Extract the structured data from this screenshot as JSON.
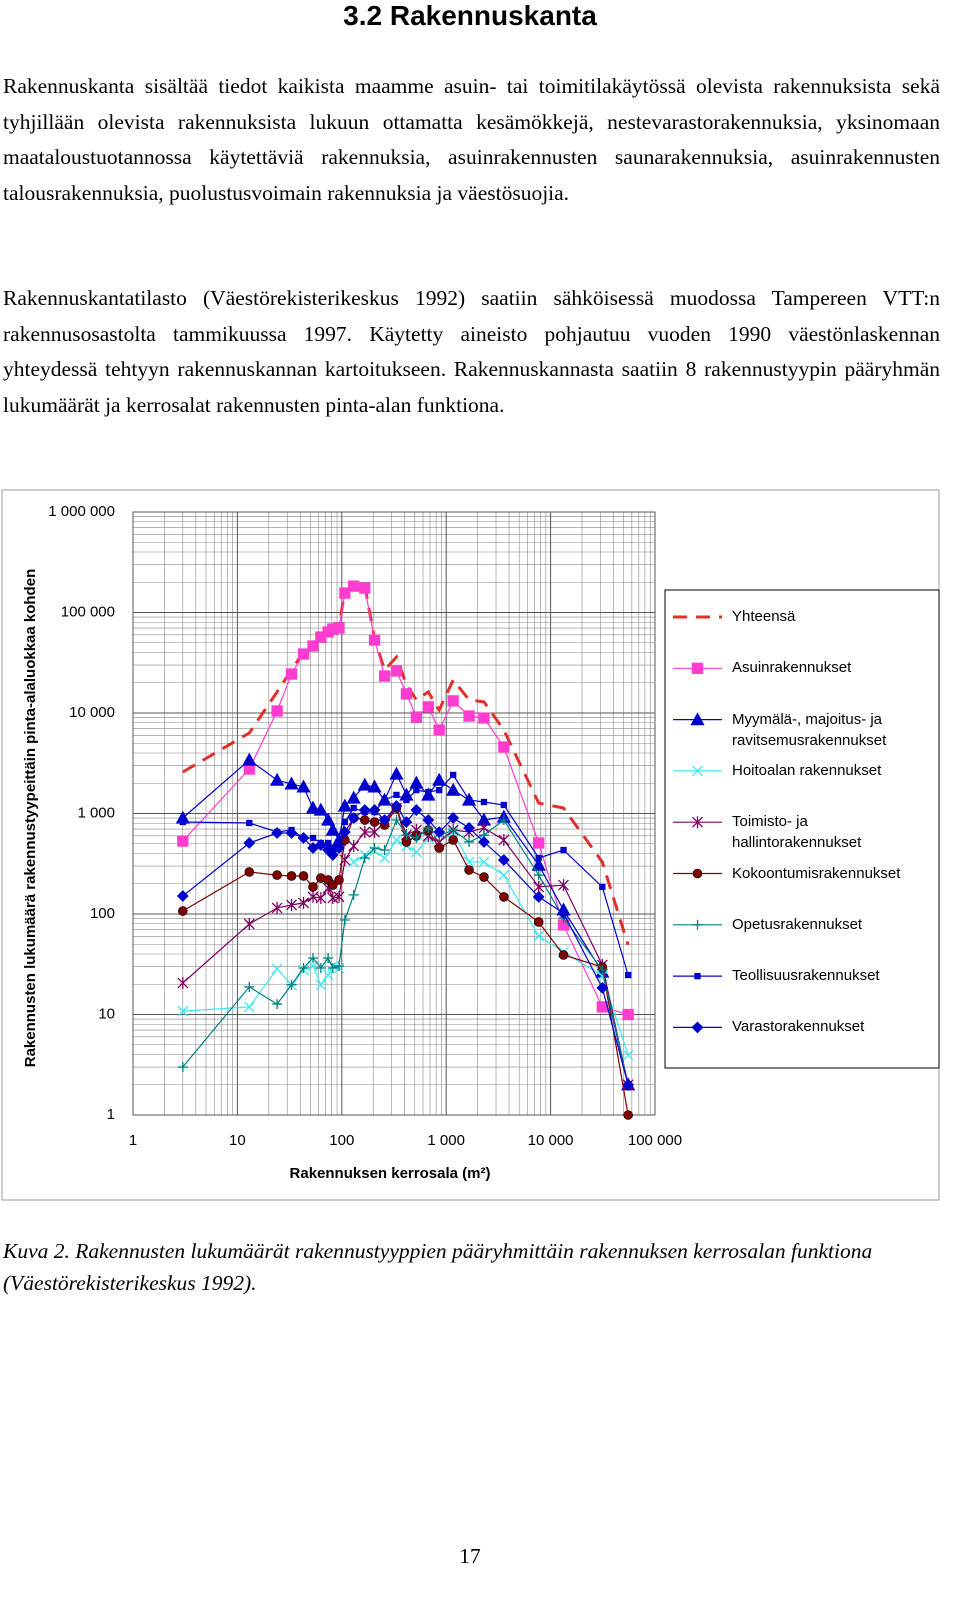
{
  "header": {
    "title": "3.2 Rakennuskanta"
  },
  "paragraphs": [
    "Rakennuskanta sisältää tiedot kaikista maamme asuin- tai toimitilakäytössä olevista rakennuksista sekä tyhjillään olevista rakennuksista lukuun ottamatta kesämökkejä, nestevarastorakennuksia, yksinomaan maataloustuotannossa käytettäviä rakennuksia, asuinrakennusten saunarakennuksia, asuinrakennusten talousrakennuksia, puolustus­voimain rakennuksia ja väestösuojia.",
    "Rakennuskantatilasto (Väestörekisterikeskus 1992) saatiin sähköisessä muodossa Tampereen VTT:n rakennusosastolta tammikuussa 1997. Käytetty aineisto pohjautuu vuoden 1990 väestönlaskennan yhteydessä tehtyyn rakennuskannan kartoitukseen. Rakennuskannasta saatiin 8 rakennustyypin pääryhmän lukumäärät ja kerrosalat raken­nusten pinta-alan funktiona."
  ],
  "chart_data": {
    "type": "line",
    "x_label": "Rakennuksen kerrosala (m²)",
    "y_label": "Rakennusten lukumäärä rakennustyypeittäin pinta-alaluokkaa kohden",
    "x_log": true,
    "y_log": true,
    "grid": true,
    "minor_grid": true,
    "legend": "right",
    "xlim": [
      1,
      100000
    ],
    "ylim": [
      1,
      1000000
    ],
    "xticks": [
      1,
      10,
      100,
      {
        "value": 1000,
        "label": "1 000"
      },
      {
        "value": 10000,
        "label": "10 000"
      },
      {
        "value": 100000,
        "label": "100 000"
      }
    ],
    "yticks": [
      1,
      10,
      100,
      {
        "value": 1000,
        "label": "1 000"
      },
      {
        "value": 10000,
        "label": "10 000"
      },
      {
        "value": 100000,
        "label": "100 000"
      },
      {
        "value": 1000000,
        "label": "1 000 000"
      }
    ],
    "x": [
      3,
      13,
      24,
      33,
      43,
      53,
      63,
      74,
      82,
      94,
      107,
      130,
      166,
      206,
      257,
      334,
      416,
      518,
      674,
      857,
      1166,
      1656,
      2300,
      3565,
      7690,
      13300,
      31300,
      55300
    ],
    "series": [
      {
        "name": "Yhteensä",
        "color": "#e0302a",
        "marker": "dash",
        "values": [
          2590,
          6320,
          16200,
          26800,
          40400,
          47500,
          57000,
          65500,
          71700,
          73400,
          164000,
          188000,
          184000,
          54400,
          26800,
          36100,
          19000,
          13500,
          16200,
          10700,
          21300,
          13500,
          12900,
          6770,
          1270,
          1135,
          329,
          49
        ]
      },
      {
        "name": "Asuinrakennukset",
        "color": "#ff3ccf",
        "marker": "square",
        "values": [
          532,
          2770,
          10470,
          24400,
          38600,
          46400,
          57000,
          64000,
          68500,
          70100,
          156000,
          183000,
          175000,
          53200,
          23300,
          26200,
          15500,
          9120,
          11500,
          6770,
          13200,
          9330,
          8910,
          4590,
          509,
          77.8,
          11.9,
          10
        ]
      },
      {
        "name": "Myymälä-, majoitus- ja ravitsemusrakennukset",
        "color": "#0000cc",
        "marker": "triangle",
        "values": [
          902,
          3410,
          2150,
          1970,
          1840,
          1135,
          1083,
          861,
          685,
          545,
          1189,
          1427,
          1920,
          1840,
          1362,
          2470,
          1530,
          2010,
          1530,
          2150,
          1710,
          1362,
          861,
          923,
          307,
          110,
          26.5,
          2
        ]
      },
      {
        "name": "Hoitoalan rakennukset",
        "color": "#3ee8f2",
        "marker": "x",
        "values": [
          10.8,
          11.9,
          28.4,
          19.7,
          27.7,
          30.4,
          19.7,
          24.7,
          30.4,
          29.0,
          null,
          329,
          387,
          424,
          361,
          545,
          475,
          414,
          571,
          521,
          654,
          329,
          329,
          244,
          60.4,
          41.9,
          24.2,
          3.95
        ]
      },
      {
        "name": "Toimisto- ja hallintorakennukset",
        "color": "#800060",
        "marker": "asterisk",
        "values": [
          20.6,
          79.5,
          115,
          123,
          129,
          148,
          144,
          181,
          144,
          148,
          345,
          475,
          654,
          654,
          823,
          1135,
          611,
          685,
          597,
          521,
          685,
          654,
          718,
          545,
          186,
          194,
          31.1,
          2
        ]
      },
      {
        "name": "Kokoontumisrakennukset",
        "color": "#800000",
        "marker": "circle",
        "values": [
          107,
          262,
          244,
          239,
          239,
          186,
          228,
          218,
          194,
          218,
          545,
          902,
          861,
          823,
          769,
          1135,
          521,
          597,
          685,
          454,
          545,
          274,
          233,
          148,
          83.3,
          39.1,
          29.7,
          1
        ]
      },
      {
        "name": "Opetusrakennukset",
        "color": "#008080",
        "marker": "plus",
        "values": [
          3,
          18.8,
          12.7,
          19.7,
          29,
          36.5,
          29,
          36.5,
          29,
          30.4,
          87.1,
          155,
          361,
          454,
          433,
          861,
          611,
          571,
          718,
          597,
          685,
          521,
          611,
          861,
          244,
          91.3,
          27.7,
          2
        ]
      },
      {
        "name": "Teollisuusrakennukset",
        "color": "#0000cc",
        "marker": "smallsquare",
        "values": [
          823,
          804,
          654,
          685,
          571,
          571,
          509,
          509,
          454,
          486,
          823,
          1135,
          1035,
          1035,
          1362,
          1530,
          1362,
          1710,
          1637,
          1710,
          2420,
          1362,
          1301,
          1216,
          361,
          433,
          186,
          24.7
        ]
      },
      {
        "name": "Varastorakennukset",
        "color": "#0000cc",
        "marker": "diamond",
        "values": [
          151,
          509,
          640,
          640,
          571,
          454,
          486,
          433,
          387,
          454,
          654,
          902,
          1083,
          1083,
          861,
          1189,
          823,
          1083,
          861,
          654,
          902,
          718,
          521,
          345,
          148,
          102,
          18.4,
          2
        ]
      }
    ]
  },
  "caption": "Kuva 2. Rakennusten lukumäärät rakennustyyppien pääryhmittäin rakennuksen kerrosalan funktiona (Väestörekisterikeskus 1992).",
  "footer": {
    "page_number": "17"
  }
}
